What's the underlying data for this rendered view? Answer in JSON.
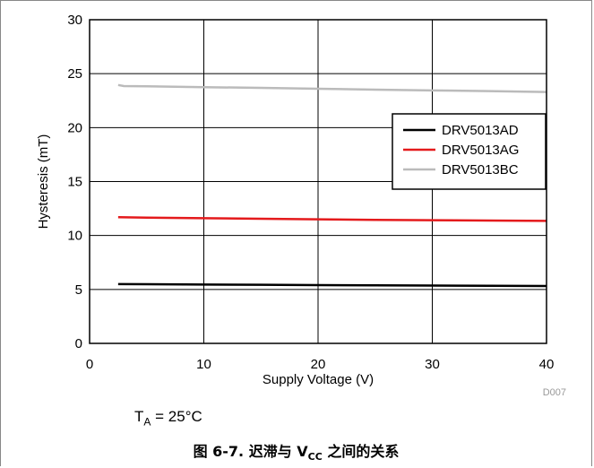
{
  "chart_data": {
    "type": "line",
    "xlabel": "Supply Voltage (V)",
    "ylabel": "Hysteresis (mT)",
    "xlim": [
      0,
      40
    ],
    "ylim": [
      0,
      30
    ],
    "xticks": [
      0,
      10,
      20,
      30,
      40
    ],
    "yticks": [
      0,
      5,
      10,
      15,
      20,
      25,
      30
    ],
    "grid": true,
    "legend_position": "top-right",
    "figure_id": "D007",
    "series": [
      {
        "name": "DRV5013AD",
        "color": "#000000",
        "x": [
          2.5,
          5,
          10,
          15,
          20,
          25,
          30,
          35,
          40
        ],
        "y": [
          5.5,
          5.48,
          5.45,
          5.43,
          5.4,
          5.38,
          5.36,
          5.34,
          5.32
        ]
      },
      {
        "name": "DRV5013AG",
        "color": "#e41a1c",
        "x": [
          2.5,
          5,
          10,
          15,
          20,
          25,
          30,
          35,
          40
        ],
        "y": [
          11.7,
          11.66,
          11.6,
          11.55,
          11.5,
          11.45,
          11.42,
          11.38,
          11.35
        ]
      },
      {
        "name": "DRV5013BC",
        "color": "#bbbbbb",
        "x": [
          2.5,
          3,
          5,
          10,
          15,
          20,
          25,
          30,
          35,
          40
        ],
        "y": [
          23.95,
          23.85,
          23.83,
          23.75,
          23.68,
          23.6,
          23.52,
          23.45,
          23.38,
          23.3
        ]
      }
    ]
  },
  "conditions": {
    "prefix": "T",
    "sub": "A",
    "rest": " = 25°C"
  },
  "caption": {
    "prefix": "图 6-7. 迟滞与 V",
    "sub": "CC",
    "suffix": " 之间的关系"
  }
}
